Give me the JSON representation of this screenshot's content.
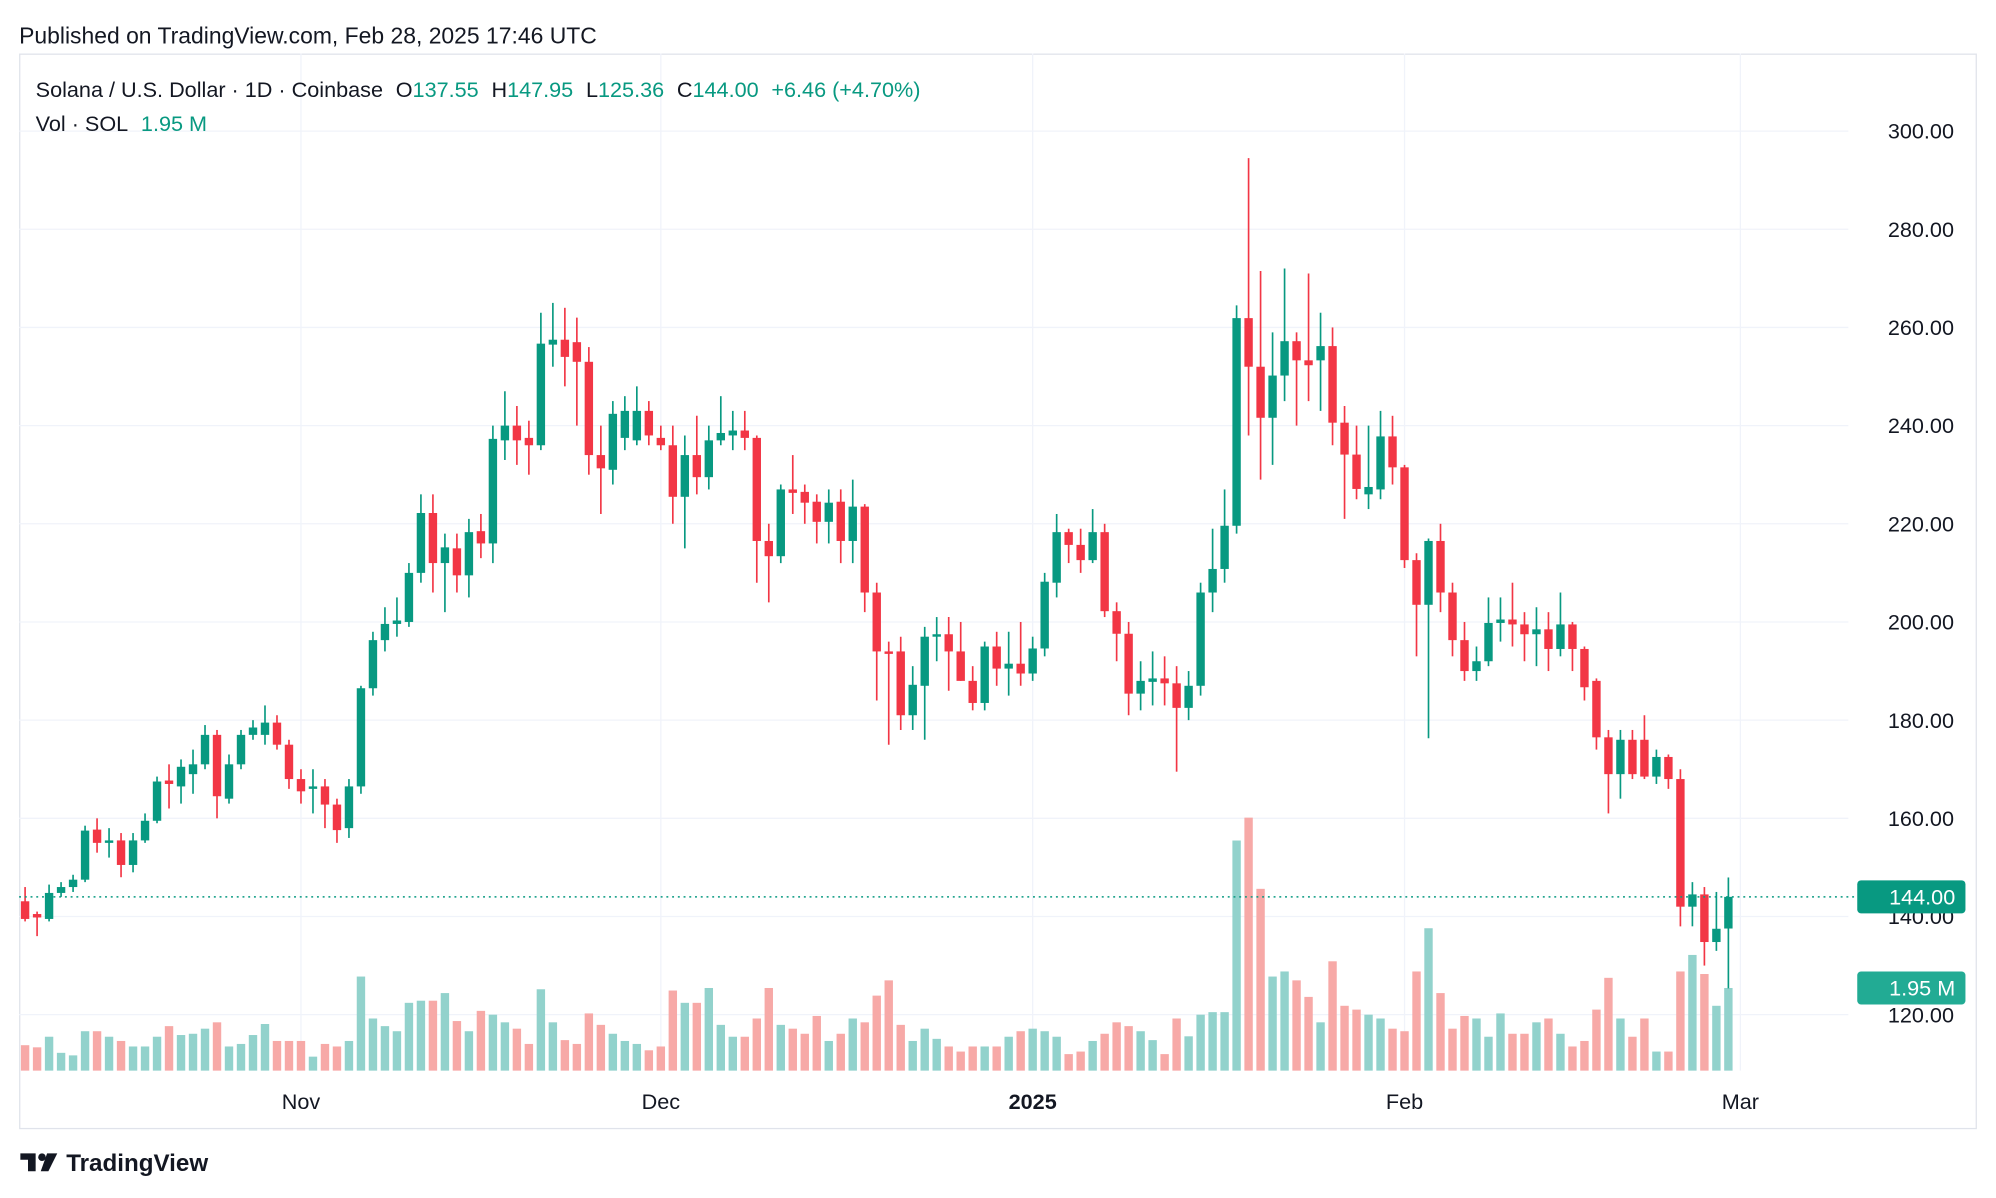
{
  "header": {
    "published": "Published on TradingView.com, Feb 28, 2025 17:46 UTC",
    "symbol": "Solana / U.S. Dollar · 1D · Coinbase",
    "ohlc": [
      {
        "label": "O",
        "value": "137.55"
      },
      {
        "label": "H",
        "value": "147.95"
      },
      {
        "label": "L",
        "value": "125.36"
      },
      {
        "label": "C",
        "value": "144.00"
      }
    ],
    "change": "+6.46 (+4.70%)",
    "volume_title": "Vol · SOL"
  },
  "chart_data": {
    "type": "candlestick",
    "xlim": [
      -0.5,
      152
    ],
    "xticks": [
      {
        "value": 23,
        "label": "Nov"
      },
      {
        "value": 53,
        "label": "Dec"
      },
      {
        "value": 84,
        "label": "2025"
      },
      {
        "value": 115,
        "label": "Feb"
      },
      {
        "value": 143,
        "label": "Mar"
      }
    ],
    "ylim": [
      108.6,
      315.8
    ],
    "yticks": [
      {
        "value": 120,
        "label": "120.00"
      },
      {
        "value": 140,
        "label": "140.00"
      },
      {
        "value": 160,
        "label": "160.00"
      },
      {
        "value": 180,
        "label": "180.00"
      },
      {
        "value": 200,
        "label": "200.00"
      },
      {
        "value": 220,
        "label": "220.00"
      },
      {
        "value": 240,
        "label": "240.00"
      },
      {
        "value": 260,
        "label": "260.00"
      },
      {
        "value": 280,
        "label": "280.00"
      },
      {
        "value": 300,
        "label": "300.00"
      }
    ],
    "y2lim": [
      0,
      24
    ],
    "grid": true,
    "up_color": "#089981",
    "down_color": "#f23645",
    "volume_up_color": "#92d2cc",
    "volume_down_color": "#f7a9a7",
    "open": [
      143.1,
      140.5,
      139.5,
      144.8,
      146,
      147.5,
      157.7,
      155,
      155.5,
      150.5,
      155.5,
      159.5,
      167.7,
      166.5,
      169,
      171,
      177,
      164,
      171,
      177,
      177,
      179.5,
      175,
      168,
      166,
      166.5,
      162.8,
      158,
      166.5,
      186.5,
      196.3,
      199.6,
      200,
      210,
      222.2,
      212,
      215,
      209.5,
      218.5,
      216,
      237,
      240,
      237.5,
      236,
      256.5,
      257.5,
      257,
      253,
      234,
      231,
      237.5,
      237,
      243,
      237.5,
      236,
      225.5,
      234,
      229.5,
      237,
      238,
      239,
      237.5,
      216.5,
      213.4,
      227,
      226.5,
      224.5,
      220.4,
      224.5,
      216.5,
      223.5,
      206,
      194,
      194,
      181,
      187,
      197,
      197.5,
      194,
      188,
      183.5,
      195,
      190.5,
      191.5,
      189.5,
      194.6,
      208,
      218.3,
      215.7,
      212.6,
      218.3,
      202.2,
      197.6,
      185.4,
      187.8,
      188.5,
      187.5,
      182.5,
      187,
      206,
      210.8,
      219.6,
      261.9,
      252,
      241.6,
      250.2,
      257.2,
      253.3,
      253.3,
      256.2,
      240.6,
      234.1,
      226,
      227,
      237.8,
      231.5,
      212.6,
      203.5,
      216.5,
      206,
      196.3,
      190,
      192,
      199.8,
      200.5,
      199.5,
      197.5,
      198.5,
      194.5,
      199.5,
      194.5,
      188,
      176.5,
      169,
      176,
      176,
      168.5,
      172.5,
      168,
      142,
      144.5,
      134.8,
      137.55
    ],
    "high": [
      146,
      141,
      146.5,
      147,
      148.5,
      158.5,
      160,
      158,
      157,
      157,
      161,
      168.5,
      171,
      172,
      174,
      179,
      178,
      173,
      178,
      180,
      183,
      181,
      176,
      170,
      170,
      168,
      164,
      168,
      187,
      198,
      203,
      205,
      212,
      226,
      226,
      218,
      218,
      221,
      222,
      240,
      247,
      244,
      241,
      263,
      265,
      264,
      262,
      256,
      240,
      245,
      246,
      248,
      245,
      240,
      240,
      238,
      242,
      240,
      246,
      243,
      243,
      238,
      220,
      228,
      234,
      228,
      226,
      227,
      227,
      229,
      224,
      208,
      196,
      197,
      191,
      199,
      201,
      201,
      200,
      191,
      196,
      198,
      198,
      200,
      197,
      210,
      222,
      219,
      219,
      223,
      220,
      204,
      200,
      192,
      194,
      193,
      191,
      190,
      208,
      219,
      227,
      264.5,
      294.5,
      271.5,
      259,
      272,
      259,
      271,
      263,
      260,
      244,
      240,
      240,
      243,
      242,
      232,
      214,
      217,
      220,
      208,
      200,
      195,
      205,
      205,
      208,
      202,
      203,
      202,
      206,
      200,
      195,
      188.5,
      178,
      178,
      178,
      181,
      174,
      173,
      170,
      147,
      146,
      145,
      147.95
    ],
    "low": [
      139,
      136,
      139,
      144,
      145,
      147,
      153,
      152,
      148,
      149,
      155,
      159,
      162,
      163,
      165,
      170,
      160,
      163,
      170,
      176,
      175,
      174,
      166,
      163,
      161,
      158,
      155,
      156,
      165,
      185,
      194,
      197,
      199,
      208,
      206,
      202,
      206,
      205,
      213,
      212,
      233,
      232,
      230,
      235,
      252,
      248,
      240,
      230,
      222,
      228,
      235,
      236,
      236,
      235,
      220,
      215,
      226,
      227,
      236,
      235,
      235,
      208,
      204,
      212,
      222,
      220,
      216,
      216,
      212,
      212,
      202,
      184,
      175,
      178,
      178,
      176,
      192,
      186,
      188,
      182,
      182,
      187,
      185,
      187,
      188,
      193,
      205,
      212,
      210,
      212,
      201,
      192,
      181,
      182,
      183,
      183,
      169.5,
      180,
      185,
      202,
      208,
      218,
      238,
      229,
      232,
      245,
      240,
      245,
      243,
      236,
      221,
      225,
      223,
      225,
      228,
      211,
      193,
      176.3,
      202,
      193,
      188,
      188,
      191,
      196,
      195,
      192,
      191,
      190,
      193,
      190,
      184,
      174,
      161,
      164,
      168,
      168,
      167,
      166,
      138,
      138,
      130,
      133,
      125.36
    ],
    "close": [
      139.5,
      139.8,
      144.8,
      146,
      147.5,
      157.5,
      155,
      155.5,
      150.5,
      155.5,
      159.5,
      167.5,
      167,
      170.5,
      171,
      177,
      164.5,
      171,
      177,
      178.5,
      179.5,
      175,
      168,
      165.5,
      166.5,
      162.8,
      157.6,
      166.5,
      186.5,
      196.3,
      199.6,
      200.3,
      210,
      222.2,
      212,
      215.2,
      209.5,
      218.3,
      216,
      237.3,
      240,
      237,
      236,
      256.7,
      257.5,
      254,
      253,
      234,
      231.3,
      242.4,
      243,
      243,
      238,
      236,
      225.5,
      234,
      229.5,
      237,
      238.5,
      239,
      237.5,
      216.5,
      213.4,
      227,
      226.3,
      224.3,
      220.4,
      224.3,
      216.5,
      223.5,
      206,
      194,
      193.5,
      181,
      187.2,
      197,
      197.5,
      194,
      188,
      183.5,
      195,
      190.5,
      191.5,
      189.5,
      194.6,
      208.2,
      218.3,
      215.7,
      212.6,
      218.3,
      202.2,
      197.6,
      185.4,
      188,
      188.5,
      187.5,
      182.5,
      187,
      206,
      210.8,
      219.6,
      261.9,
      252,
      241.6,
      250.2,
      257.2,
      253.3,
      252.3,
      256.2,
      240.6,
      234.1,
      227.1,
      227.5,
      237.8,
      231.5,
      212.6,
      203.5,
      216.5,
      206,
      196.3,
      190,
      192,
      199.8,
      200.5,
      199.5,
      197.5,
      198.5,
      194.5,
      199.5,
      194.5,
      186.7,
      176.5,
      169,
      176,
      169,
      168.5,
      172.5,
      168,
      142,
      144.5,
      134.8,
      137.5,
      144
    ],
    "volume": [
      0.6,
      0.55,
      0.8,
      0.42,
      0.36,
      0.93,
      0.93,
      0.8,
      0.7,
      0.57,
      0.57,
      0.8,
      1.05,
      0.84,
      0.87,
      0.99,
      1.14,
      0.57,
      0.63,
      0.84,
      1.1,
      0.7,
      0.7,
      0.7,
      0.33,
      0.63,
      0.57,
      0.7,
      2.22,
      1.23,
      1.05,
      0.93,
      1.6,
      1.65,
      1.65,
      1.83,
      1.17,
      0.93,
      1.41,
      1.32,
      1.14,
      0.99,
      0.63,
      1.92,
      1.14,
      0.72,
      0.63,
      1.35,
      1.08,
      0.87,
      0.7,
      0.63,
      0.48,
      0.57,
      1.89,
      1.6,
      1.6,
      1.95,
      1.08,
      0.8,
      0.8,
      1.23,
      1.95,
      1.08,
      0.99,
      0.87,
      1.29,
      0.7,
      0.87,
      1.23,
      1.14,
      1.77,
      2.13,
      1.08,
      0.7,
      0.99,
      0.75,
      0.57,
      0.45,
      0.57,
      0.57,
      0.57,
      0.8,
      0.93,
      0.99,
      0.93,
      0.8,
      0.39,
      0.45,
      0.7,
      0.87,
      1.14,
      1.05,
      0.93,
      0.72,
      0.39,
      1.23,
      0.81,
      1.32,
      1.38,
      1.38,
      5.43,
      5.97,
      4.29,
      2.22,
      2.34,
      2.13,
      1.74,
      1.14,
      2.58,
      1.53,
      1.44,
      1.32,
      1.23,
      0.99,
      0.93,
      2.34,
      3.36,
      1.83,
      0.99,
      1.29,
      1.23,
      0.8,
      1.35,
      0.87,
      0.87,
      1.14,
      1.23,
      0.87,
      0.57,
      0.7,
      1.44,
      2.19,
      1.23,
      0.8,
      1.23,
      0.45,
      0.45,
      2.34,
      2.73,
      2.28,
      1.53,
      1.95
    ],
    "last_price": {
      "value": 144,
      "label": "144.00"
    },
    "last_volume": {
      "value": 1.95,
      "label": "1.95 M"
    }
  },
  "footer": {
    "brand": "TradingView"
  }
}
